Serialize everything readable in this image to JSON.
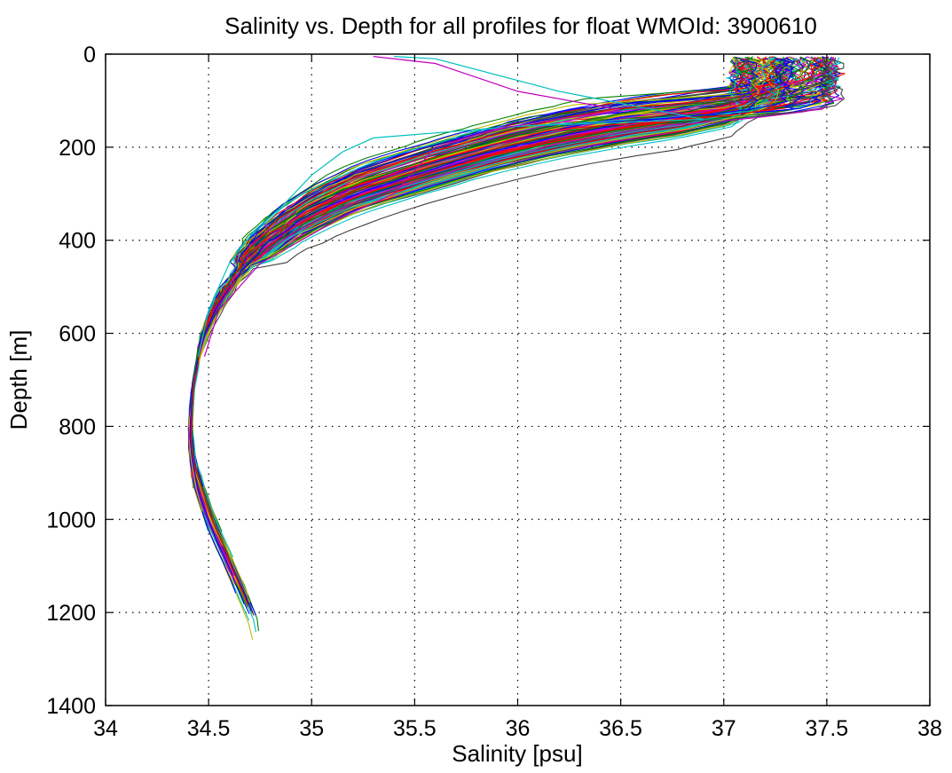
{
  "chart_data": {
    "type": "line",
    "title": "Salinity vs. Depth for all profiles for float WMOId: 3900610",
    "xlabel": "Salinity [psu]",
    "ylabel": "Depth [m]",
    "xlim": [
      34,
      38
    ],
    "ylim": [
      0,
      1400
    ],
    "y_reversed": true,
    "grid": true,
    "x_ticks": [
      34,
      34.5,
      35,
      35.5,
      36,
      36.5,
      37,
      37.5,
      38
    ],
    "x_tick_labels": [
      "34",
      "34.5",
      "35",
      "35.5",
      "36",
      "36.5",
      "37",
      "37.5",
      "38"
    ],
    "y_ticks": [
      0,
      200,
      400,
      600,
      800,
      1000,
      1200,
      1400
    ],
    "y_tick_labels": [
      "0",
      "200",
      "400",
      "600",
      "800",
      "1000",
      "1200",
      "1400"
    ],
    "colors": [
      "#0000ff",
      "#008000",
      "#ff0000",
      "#00bfbf",
      "#bf00bf",
      "#bfbf00",
      "#404040"
    ],
    "series_envelope": {
      "depth": [
        10,
        60,
        100,
        130,
        150,
        175,
        200,
        250,
        300,
        350,
        400,
        450,
        500,
        550,
        600,
        650,
        700,
        750,
        800,
        850,
        900,
        1000,
        1100,
        1200,
        1240
      ],
      "salinity_mean": [
        37.2,
        37.2,
        37.1,
        36.8,
        36.5,
        36.2,
        35.95,
        35.55,
        35.2,
        34.97,
        34.8,
        34.68,
        34.6,
        34.53,
        34.48,
        34.45,
        34.43,
        34.415,
        34.41,
        34.415,
        34.43,
        34.5,
        34.6,
        34.7,
        34.73
      ]
    },
    "special_profiles": [
      {
        "depth": [
          5,
          10,
          80,
          140,
          155,
          180,
          210,
          260,
          330,
          380,
          450,
          550,
          650
        ],
        "salinity": [
          35.4,
          35.6,
          36.2,
          36.9,
          36.0,
          35.3,
          35.15,
          35.0,
          34.85,
          34.72,
          34.6,
          34.5,
          34.45
        ]
      },
      {
        "depth": [
          5,
          20,
          80,
          120,
          160,
          200,
          250,
          300,
          350,
          450,
          550,
          650
        ],
        "salinity": [
          35.3,
          35.6,
          36.0,
          36.5,
          35.9,
          35.6,
          35.5,
          35.4,
          35.15,
          34.75,
          34.55,
          34.48
        ]
      }
    ],
    "profile_count": 150
  }
}
